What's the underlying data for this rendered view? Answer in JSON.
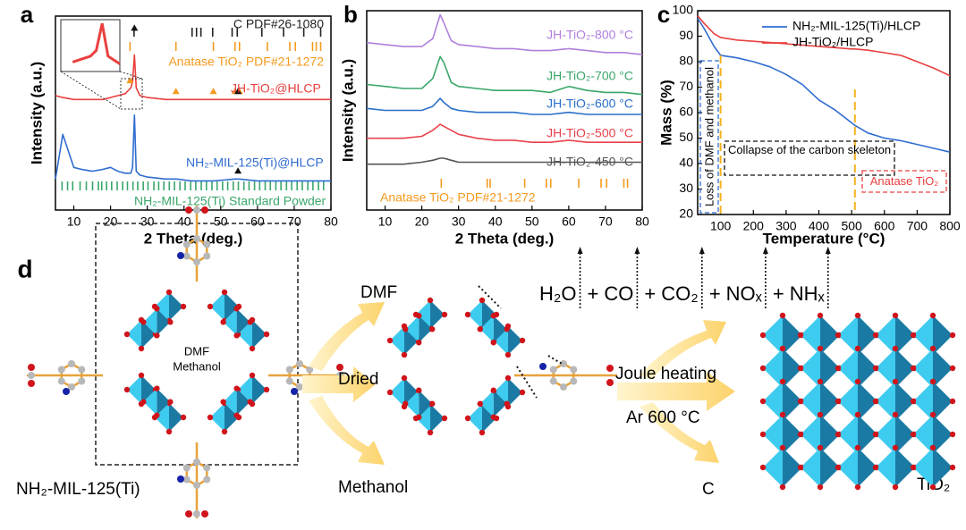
{
  "chart_data": [
    {
      "type": "line",
      "panel": "a",
      "xlabel": "2 Theta (deg.)",
      "ylabel": "Intensity (a.u.)",
      "xlim": [
        5,
        80
      ],
      "xticks": [
        10,
        20,
        30,
        40,
        50,
        60,
        70,
        80
      ],
      "ylim": [
        0,
        100
      ],
      "x": [
        5,
        7,
        10,
        12,
        15,
        18,
        20,
        22,
        24,
        25,
        25.5,
        26,
        26.5,
        27,
        28,
        30,
        35,
        38,
        42,
        48,
        54,
        55,
        60,
        65,
        70,
        75,
        80
      ],
      "series": [
        {
          "name": "JH-TiO₂@HLCP",
          "color": "#e8403f",
          "values": [
            59,
            58,
            57,
            57,
            57,
            57,
            58,
            59,
            60,
            62,
            63,
            66,
            80,
            63,
            59,
            58,
            57,
            57,
            57,
            57,
            57,
            57,
            57,
            57,
            57,
            57,
            57
          ]
        },
        {
          "name": "NH₂-MIL-125(Ti)@HLCP",
          "color": "#2f6ccf",
          "values": [
            16,
            39,
            22,
            21,
            20,
            21,
            22,
            20,
            19,
            19,
            19,
            22,
            49,
            20,
            18,
            17,
            16,
            16,
            15,
            15,
            16,
            16,
            15,
            15,
            15,
            15,
            15
          ]
        }
      ],
      "references": [
        {
          "name": "C PDF#26-1080",
          "color": "#222222",
          "positions": [
            26.4,
            42.2,
            43.4,
            44.6,
            47.8,
            53.1,
            54.5,
            61.2,
            67.1,
            72.6,
            77.2
          ]
        },
        {
          "name": "Anatase TiO₂ PDF#21-1272",
          "color": "#f39a1e",
          "positions": [
            25.3,
            37.8,
            48,
            53.9,
            55.1,
            62.7,
            68.8,
            70.3,
            75,
            76,
            77.2
          ]
        },
        {
          "name": "NH₂-MIL-125(Ti) Standard Powder",
          "color": "#3aa66a",
          "positions": [
            6.8,
            8.3,
            9.7,
            11.7,
            13.4,
            15.1,
            16.7,
            17.6,
            18.9,
            20.3,
            21.8,
            23.3,
            24.6,
            26.1,
            27.4,
            28.9,
            30.2,
            31.8,
            33.1,
            34.5,
            36,
            37.4,
            38.9,
            40.3,
            41.8,
            43.2,
            44.7,
            46.1,
            47.6,
            49,
            50.5,
            51.9,
            53.4,
            54.8,
            56.3,
            57.7,
            59.2,
            60.6,
            62.1,
            63.5,
            65,
            66.4,
            67.9,
            69.3,
            70.8,
            72.2,
            73.7,
            75.1,
            76.6,
            78
          ]
        }
      ],
      "markers": [
        {
          "color": "#f39a1e",
          "x": [
            25.3,
            37.8,
            48,
            53.9,
            55.1
          ]
        },
        {
          "color": "#111111",
          "x": [
            26.5,
            54.7
          ]
        },
        {
          "color": "#111111",
          "x": [
            54.7
          ]
        }
      ]
    },
    {
      "type": "line",
      "panel": "b",
      "xlabel": "2 Theta (deg.)",
      "ylabel": "Intensity (a.u.)",
      "xlim": [
        5,
        80
      ],
      "xticks": [
        10,
        20,
        30,
        40,
        50,
        60,
        70,
        80
      ],
      "ylim": [
        0,
        100
      ],
      "x": [
        5,
        10,
        15,
        20,
        23,
        25,
        26,
        28,
        30,
        35,
        40,
        45,
        50,
        55,
        60,
        65,
        70,
        75,
        80
      ],
      "series": [
        {
          "name": "JH-TiO₂-800 °C",
          "color": "#b07fdc",
          "values": [
            84,
            83,
            82,
            82,
            86,
            98,
            94,
            85,
            83,
            82,
            81,
            81,
            80,
            80,
            81,
            80,
            79,
            79,
            78
          ]
        },
        {
          "name": "JH-TiO₂-700 °C",
          "color": "#3aa66a",
          "values": [
            63,
            62,
            61,
            61,
            66,
            77,
            74,
            64,
            62,
            61,
            60,
            60,
            60,
            59,
            62,
            60,
            59,
            59,
            58
          ]
        },
        {
          "name": "JH-TiO₂-600 °C",
          "color": "#2a6fc9",
          "values": [
            51,
            50,
            50,
            50,
            52,
            56,
            54,
            51,
            50,
            49,
            49,
            49,
            48,
            48,
            49,
            48,
            48,
            48,
            48
          ]
        },
        {
          "name": "JH-TiO₂-500 °C",
          "color": "#e8424b",
          "values": [
            36,
            36,
            36,
            37,
            40,
            43,
            42,
            40,
            38,
            36,
            35,
            35,
            34,
            34,
            35,
            34,
            34,
            34,
            34
          ]
        },
        {
          "name": "JH-TiO₂-450 °C",
          "color": "#555555",
          "values": [
            23,
            23,
            23,
            24,
            25,
            26,
            26,
            25,
            24,
            24,
            24,
            24,
            24,
            24,
            24,
            24,
            24,
            24,
            24
          ]
        }
      ],
      "references": [
        {
          "name": "Anatase TiO₂ PDF#21-1272",
          "color": "#f39a1e",
          "positions": [
            25.3,
            37.8,
            38.6,
            48,
            53.9,
            55.1,
            62.7,
            68.8,
            70.3,
            75,
            76
          ]
        }
      ]
    },
    {
      "type": "line",
      "panel": "c",
      "xlabel": "Temperature (°C)",
      "ylabel": "Mass (%)",
      "xlim": [
        30,
        800
      ],
      "xticks": [
        100,
        200,
        300,
        400,
        500,
        600,
        700,
        800
      ],
      "ylim": [
        20,
        100
      ],
      "yticks": [
        20,
        30,
        40,
        50,
        60,
        70,
        80,
        90,
        100
      ],
      "x": [
        30,
        50,
        80,
        100,
        150,
        200,
        250,
        300,
        350,
        400,
        450,
        500,
        510,
        550,
        600,
        650,
        700,
        750,
        800
      ],
      "series": [
        {
          "name": "NH₂-MIL-125(Ti)/HLCP",
          "color": "#2f6ccf",
          "values": [
            97,
            93,
            86,
            82.5,
            81.5,
            80,
            78,
            75,
            71,
            65,
            61,
            56,
            55,
            52,
            50,
            49,
            47.5,
            46,
            44.5
          ]
        },
        {
          "name": "JH-TiO₂/HLCP",
          "color": "#e8403f",
          "values": [
            98,
            95,
            91,
            89.5,
            88.5,
            88,
            87.5,
            87,
            86.5,
            86,
            85.5,
            85,
            85,
            84.5,
            83.5,
            82.5,
            80,
            77.5,
            74.5
          ]
        }
      ],
      "vlines": [
        100,
        510
      ],
      "vline_color": "#f5b21e",
      "annotations": [
        {
          "text": "Loss of DMF and methanol",
          "color": "#2f6ccf"
        },
        {
          "text": "Collapse of the carbon skeleton",
          "color": "#111111"
        },
        {
          "text": "Anatase TiO₂",
          "color": "#e8403f"
        }
      ]
    }
  ],
  "diagram": {
    "panel": "d",
    "start": "NH₂-MIL-125(Ti)",
    "inner": [
      "DMF",
      "Methanol"
    ],
    "step1": "Dried",
    "removed": [
      "DMF",
      "Methanol"
    ],
    "products": [
      "H₂O",
      "CO",
      "CO₂",
      "NOₓ",
      "NHₓ"
    ],
    "joiner": "+",
    "step2": "Joule heating",
    "condition": "Ar  600 °C",
    "residue": "C",
    "end": "TiO₂"
  }
}
